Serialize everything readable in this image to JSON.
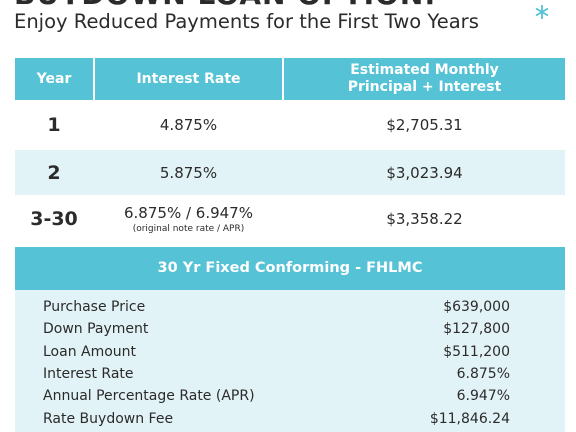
{
  "header": {
    "title": "BUYDOWN LOAN OPTION:",
    "subtitle": "Enjoy Reduced Payments for the First Two Years"
  },
  "table": {
    "columns": [
      "Year",
      "Interest Rate",
      "Estimated Monthly Principal + Interest"
    ],
    "rows": [
      {
        "year": "1",
        "rate": "4.875%",
        "payment": "$2,705.31"
      },
      {
        "year": "2",
        "rate": "5.875%",
        "payment": "$3,023.94"
      },
      {
        "year": "3-30",
        "rate": "6.875% / 6.947%",
        "note": "(original note rate / APR)",
        "payment": "$3,358.22"
      }
    ]
  },
  "summary": {
    "title": "30 Yr Fixed Conforming - FHLMC",
    "rows": [
      [
        "Purchase Price",
        "$639,000"
      ],
      [
        "Down Payment",
        "$127,800"
      ],
      [
        "Loan Amount",
        "$511,200"
      ],
      [
        "Interest Rate",
        "6.875%"
      ],
      [
        "Annual Percentage Rate (APR)",
        "6.947%"
      ],
      [
        "Rate Buydown Fee",
        "$11,846.24"
      ]
    ]
  }
}
